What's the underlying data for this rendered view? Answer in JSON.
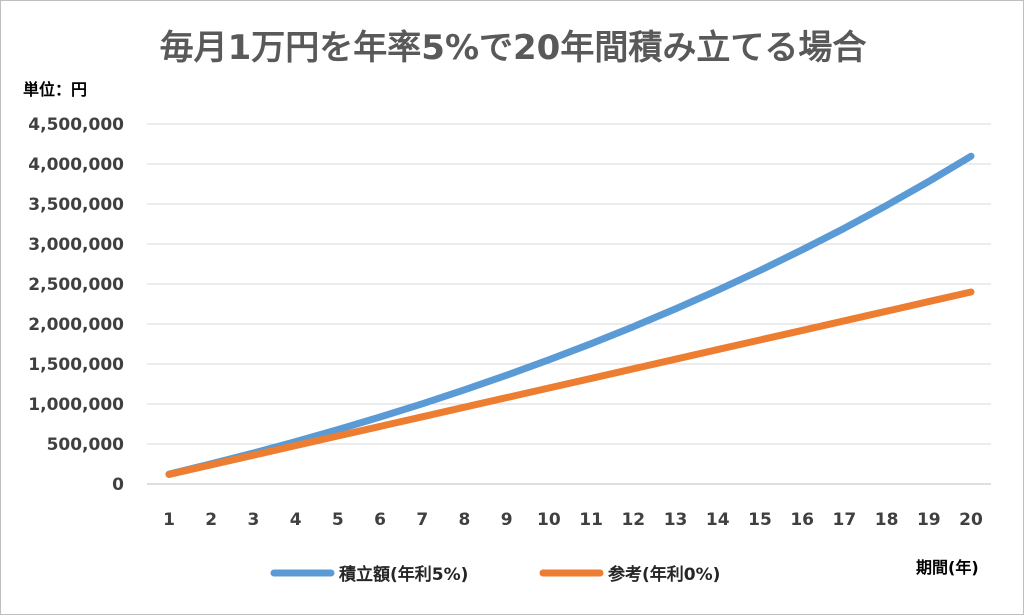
{
  "chart_data": {
    "type": "line",
    "title": "毎月1万円を年率5%で20年間積み立てる場合",
    "unit_label": "単位：円",
    "xlabel": "期間(年)",
    "ylabel": "",
    "ylim": [
      0,
      4500000
    ],
    "yticks": [
      0,
      500000,
      1000000,
      1500000,
      2000000,
      2500000,
      3000000,
      3500000,
      4000000,
      4500000
    ],
    "ytick_labels": [
      "0",
      "500,000",
      "1,000,000",
      "1,500,000",
      "2,000,000",
      "2,500,000",
      "3,000,000",
      "3,500,000",
      "4,000,000",
      "4,500,000"
    ],
    "categories": [
      "1",
      "2",
      "3",
      "4",
      "5",
      "6",
      "7",
      "8",
      "9",
      "10",
      "11",
      "12",
      "13",
      "14",
      "15",
      "16",
      "17",
      "18",
      "19",
      "20"
    ],
    "grid": true,
    "legend_position": "bottom",
    "series": [
      {
        "name": "積立額(年利5%)",
        "color": "#5b9bd5",
        "values": [
          123000,
          252000,
          388000,
          530000,
          680000,
          838000,
          1003000,
          1177000,
          1360000,
          1552000,
          1754000,
          1966000,
          2189000,
          2423000,
          2669000,
          2927000,
          3198000,
          3483000,
          3783000,
          4098000
        ]
      },
      {
        "name": "参考(年利0%)",
        "color": "#ed7d31",
        "values": [
          120000,
          240000,
          360000,
          480000,
          600000,
          720000,
          840000,
          960000,
          1080000,
          1200000,
          1320000,
          1440000,
          1560000,
          1680000,
          1800000,
          1920000,
          2040000,
          2160000,
          2280000,
          2400000
        ]
      }
    ]
  }
}
